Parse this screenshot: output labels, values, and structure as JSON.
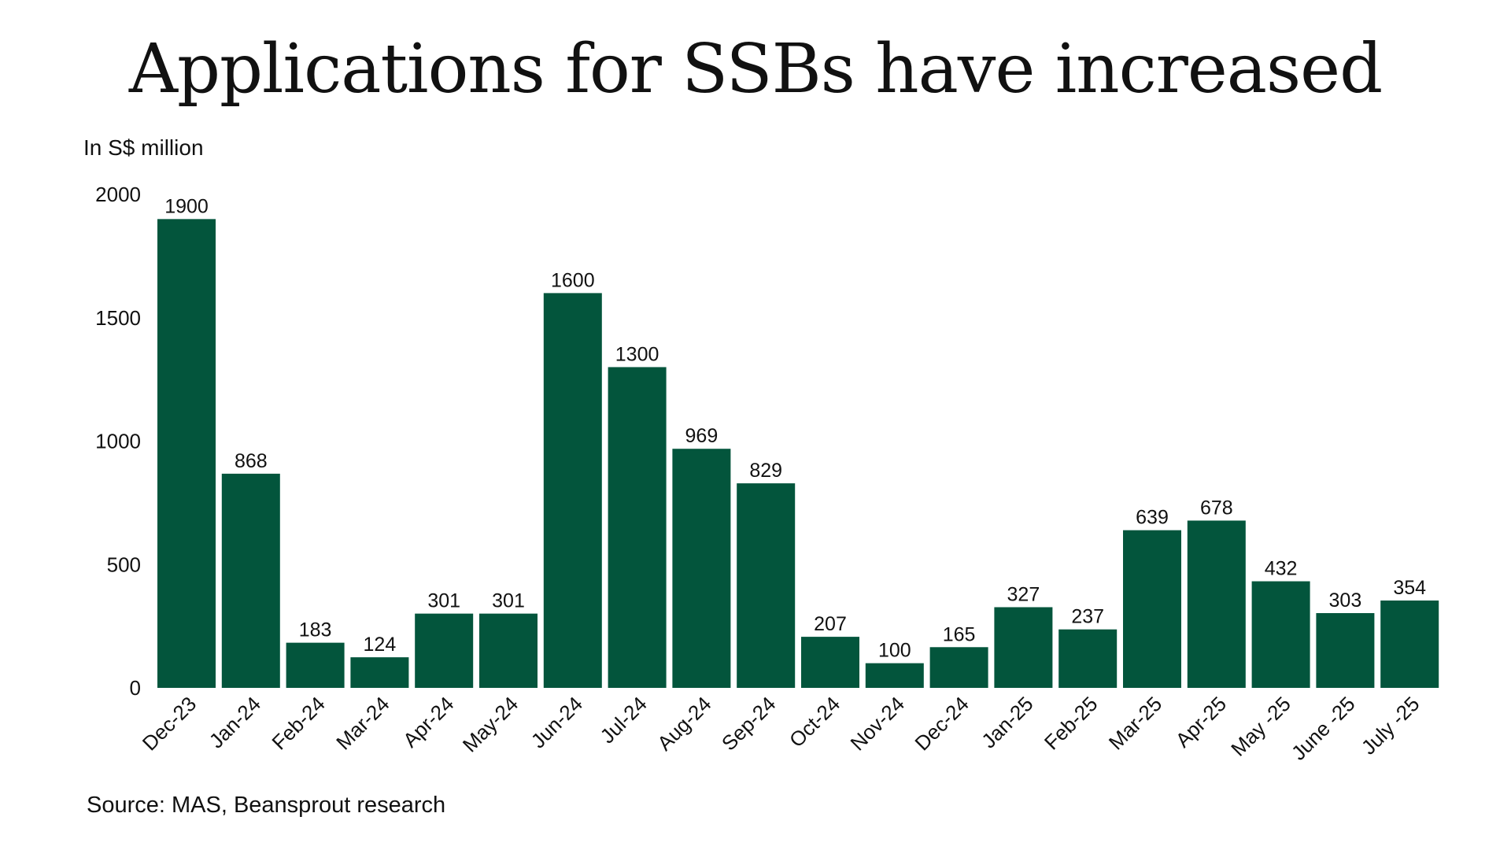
{
  "chart_data": {
    "type": "bar",
    "title": "Applications for SSBs have increased",
    "ylabel": "In S$ million",
    "xlabel": "",
    "source": "Source: MAS, Beansprout research",
    "categories": [
      "Dec-23",
      "Jan-24",
      "Feb-24",
      "Mar-24",
      "Apr-24",
      "May-24",
      "Jun-24",
      "Jul-24",
      "Aug-24",
      "Sep-24",
      "Oct-24",
      "Nov-24",
      "Dec-24",
      "Jan-25",
      "Feb-25",
      "Mar-25",
      "Apr-25",
      "May -25",
      "June -25",
      "July -25"
    ],
    "values": [
      1900,
      868,
      183,
      124,
      301,
      301,
      1600,
      1300,
      969,
      829,
      207,
      100,
      165,
      327,
      237,
      639,
      678,
      432,
      303,
      354
    ],
    "ylim": [
      0,
      2000
    ],
    "yticks": [
      0,
      500,
      1000,
      1500,
      2000
    ],
    "grid": false,
    "legend": "none",
    "bar_color": "#03553C",
    "data_labels": true
  }
}
